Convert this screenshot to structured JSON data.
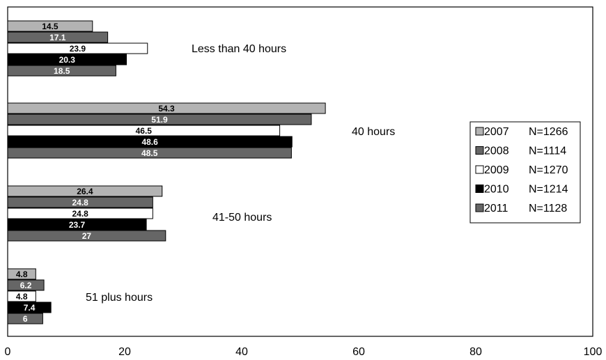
{
  "chart_data": {
    "type": "bar",
    "orientation": "horizontal",
    "categories": [
      "Less than 40 hours",
      "40 hours",
      "41-50 hours",
      "51 plus hours"
    ],
    "series": [
      {
        "name": "2007",
        "n_label": "N=1266",
        "color": "#b3b3b3",
        "label_color": "#000000",
        "values": [
          14.5,
          54.3,
          26.4,
          4.8
        ]
      },
      {
        "name": "2008",
        "n_label": "N=1114",
        "color": "#666666",
        "label_color": "#ffffff",
        "values": [
          17.1,
          51.9,
          24.8,
          6.2
        ]
      },
      {
        "name": "2009",
        "n_label": "N=1270",
        "color": "#ffffff",
        "label_color": "#000000",
        "values": [
          23.9,
          46.5,
          24.8,
          4.8
        ]
      },
      {
        "name": "2010",
        "n_label": "N=1214",
        "color": "#000000",
        "label_color": "#ffffff",
        "values": [
          20.3,
          48.6,
          23.7,
          7.4
        ]
      },
      {
        "name": "2011",
        "n_label": "N=1128",
        "color": "#666666",
        "label_color": "#ffffff",
        "values": [
          18.5,
          48.5,
          27,
          6
        ]
      }
    ],
    "value_labels": [
      [
        "14.5",
        "54.3",
        "26.4",
        "4.8"
      ],
      [
        "17.1",
        "51.9",
        "24.8",
        "6.2"
      ],
      [
        "23.9",
        "46.5",
        "24.8",
        "4.8"
      ],
      [
        "20.3",
        "48.6",
        "23.7",
        "7.4"
      ],
      [
        "18.5",
        "48.5",
        "27",
        "6"
      ]
    ],
    "xlim": [
      0,
      100
    ],
    "x_ticks": [
      "0",
      "20",
      "40",
      "60",
      "80",
      "100"
    ],
    "grid": false,
    "legend_position": "right"
  }
}
